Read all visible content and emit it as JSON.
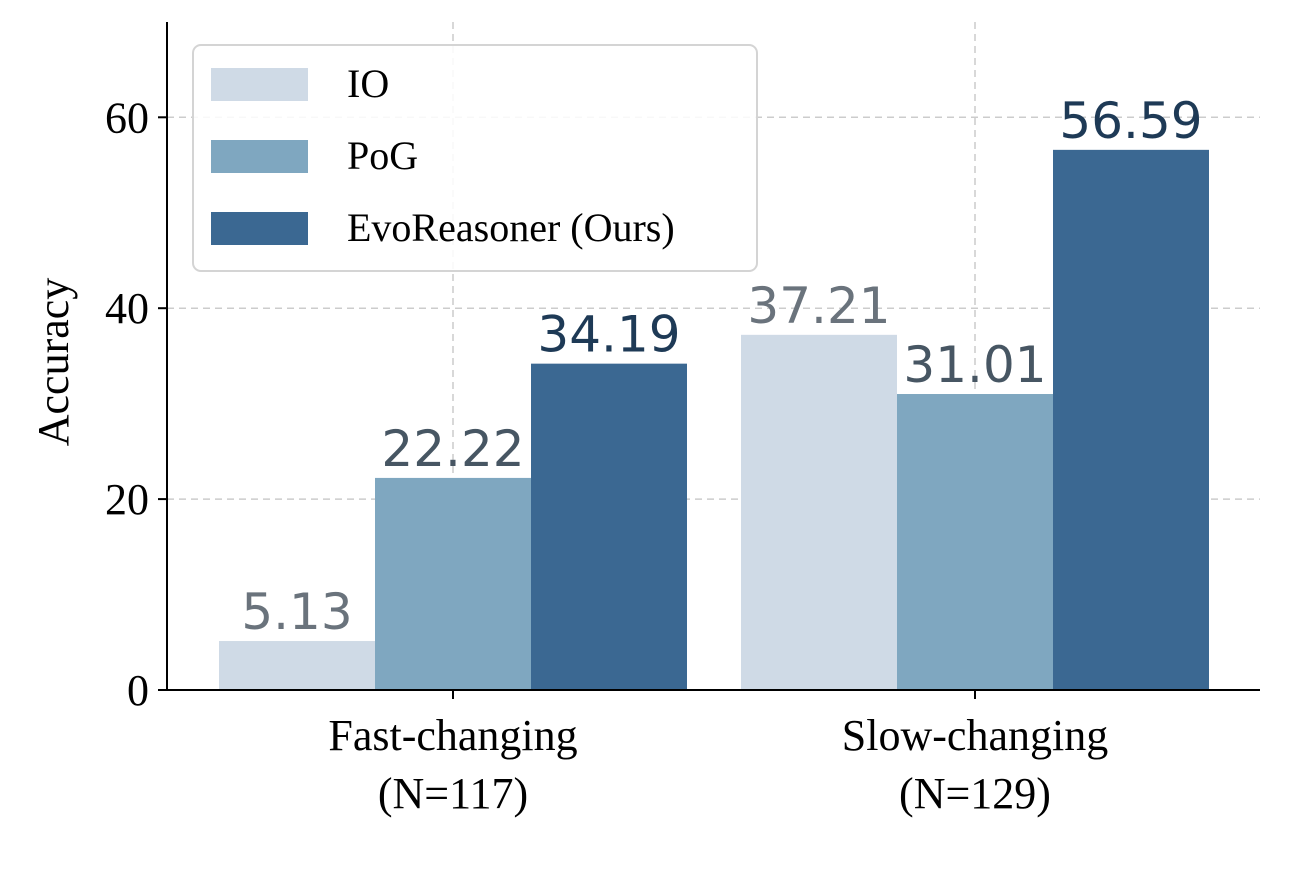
{
  "chart_data": {
    "type": "bar",
    "title": "",
    "xlabel": "",
    "ylabel": "Accuracy",
    "ylim": [
      0,
      70
    ],
    "yticks": [
      "0",
      "20",
      "40",
      "60"
    ],
    "categories": [
      {
        "line1": "Fast-changing",
        "line2": "(N=117)"
      },
      {
        "line1": "Slow-changing",
        "line2": "(N=129)"
      }
    ],
    "series": [
      {
        "name": "IO",
        "color": "#cfdae6",
        "label_color": "#6a737c",
        "values": [
          5.13,
          37.21
        ],
        "labels": [
          "5.13",
          "37.21"
        ]
      },
      {
        "name": "PoG",
        "color": "#7fa7c0",
        "label_color": "#475663",
        "values": [
          22.22,
          31.01
        ],
        "labels": [
          "22.22",
          "31.01"
        ]
      },
      {
        "name": "EvoReasoner (Ours)",
        "color": "#3b6892",
        "label_color": "#1e3a56",
        "values": [
          34.19,
          56.59
        ],
        "labels": [
          "34.19",
          "56.59"
        ]
      }
    ],
    "grid": true,
    "legend_position": "top-left"
  }
}
